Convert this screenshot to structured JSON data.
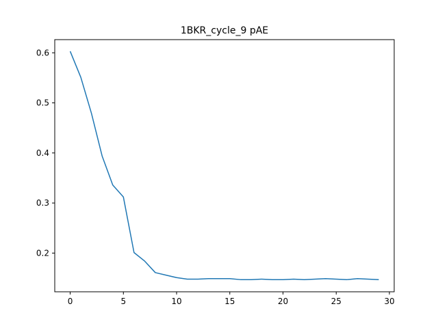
{
  "chart_data": {
    "type": "line",
    "title": "1BKR_cycle_9 pAE",
    "xlabel": "",
    "ylabel": "",
    "xlim": [
      -1.45,
      30.45
    ],
    "ylim": [
      0.1227,
      0.6263
    ],
    "x_ticks": [
      0,
      5,
      10,
      15,
      20,
      25,
      30
    ],
    "x_tick_labels": [
      "0",
      "5",
      "10",
      "15",
      "20",
      "25",
      "30"
    ],
    "y_ticks": [
      0.2,
      0.3,
      0.4,
      0.5,
      0.6
    ],
    "y_tick_labels": [
      "0.2",
      "0.3",
      "0.4",
      "0.5",
      "0.6"
    ],
    "grid": false,
    "legend": "none",
    "series": [
      {
        "color": "#1f77b4",
        "x": [
          0,
          1,
          2,
          3,
          4,
          5,
          6,
          7,
          8,
          9,
          10,
          11,
          12,
          13,
          14,
          15,
          16,
          17,
          18,
          19,
          20,
          21,
          22,
          23,
          24,
          25,
          26,
          27,
          28,
          29
        ],
        "y": [
          0.603,
          0.551,
          0.479,
          0.394,
          0.336,
          0.312,
          0.201,
          0.184,
          0.161,
          0.156,
          0.151,
          0.148,
          0.148,
          0.149,
          0.149,
          0.149,
          0.147,
          0.147,
          0.148,
          0.147,
          0.147,
          0.148,
          0.147,
          0.148,
          0.149,
          0.148,
          0.147,
          0.149,
          0.148,
          0.147
        ]
      }
    ]
  }
}
